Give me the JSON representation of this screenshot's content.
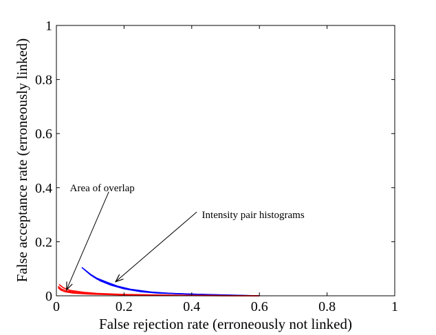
{
  "chart_data": {
    "type": "line",
    "title": "",
    "xlabel": "False rejection rate (erroneously not linked)",
    "ylabel": "False acceptance rate (erroneously linked)",
    "xlim": [
      0,
      1
    ],
    "ylim": [
      0,
      1
    ],
    "xticks": [
      "0",
      "0.2",
      "0.4",
      "0.6",
      "0.8",
      "1"
    ],
    "yticks": [
      "0",
      "0.2",
      "0.4",
      "0.6",
      "0.8",
      "1"
    ],
    "grid": false,
    "legend": "none",
    "series": [
      {
        "color": "#0000ff",
        "points": [
          [
            0.075,
            0.105
          ],
          [
            0.09,
            0.09
          ],
          [
            0.11,
            0.07
          ],
          [
            0.13,
            0.055
          ],
          [
            0.16,
            0.04
          ],
          [
            0.2,
            0.026
          ],
          [
            0.25,
            0.015
          ],
          [
            0.3,
            0.01
          ],
          [
            0.4,
            0.006
          ],
          [
            0.5,
            0.003
          ],
          [
            0.6,
            0.0
          ]
        ]
      },
      {
        "color": "#0000ff",
        "points": [
          [
            0.08,
            0.1
          ],
          [
            0.1,
            0.078
          ],
          [
            0.12,
            0.062
          ],
          [
            0.15,
            0.046
          ],
          [
            0.19,
            0.03
          ],
          [
            0.24,
            0.018
          ],
          [
            0.3,
            0.011
          ],
          [
            0.4,
            0.006
          ],
          [
            0.5,
            0.002
          ],
          [
            0.6,
            0.0
          ]
        ]
      },
      {
        "color": "#0000ff",
        "points": [
          [
            0.085,
            0.095
          ],
          [
            0.1,
            0.08
          ],
          [
            0.12,
            0.065
          ],
          [
            0.15,
            0.05
          ],
          [
            0.18,
            0.036
          ],
          [
            0.22,
            0.024
          ],
          [
            0.28,
            0.014
          ],
          [
            0.35,
            0.008
          ],
          [
            0.45,
            0.004
          ],
          [
            0.55,
            0.001
          ]
        ]
      },
      {
        "color": "#ff0000",
        "points": [
          [
            0.005,
            0.035
          ],
          [
            0.015,
            0.025
          ],
          [
            0.03,
            0.018
          ],
          [
            0.06,
            0.012
          ],
          [
            0.1,
            0.008
          ],
          [
            0.2,
            0.004
          ],
          [
            0.35,
            0.002
          ],
          [
            0.5,
            0.0005
          ],
          [
            0.6,
            0.0
          ]
        ]
      },
      {
        "color": "#ff0000",
        "points": [
          [
            0.005,
            0.03
          ],
          [
            0.012,
            0.022
          ],
          [
            0.025,
            0.015
          ],
          [
            0.05,
            0.01
          ],
          [
            0.1,
            0.006
          ],
          [
            0.2,
            0.003
          ],
          [
            0.35,
            0.001
          ],
          [
            0.5,
            0.0003
          ],
          [
            0.6,
            0.0
          ]
        ]
      },
      {
        "color": "#ff0000",
        "points": [
          [
            0.008,
            0.042
          ],
          [
            0.02,
            0.03
          ],
          [
            0.04,
            0.02
          ],
          [
            0.08,
            0.013
          ],
          [
            0.12,
            0.009
          ],
          [
            0.2,
            0.005
          ],
          [
            0.35,
            0.002
          ],
          [
            0.5,
            0.0008
          ],
          [
            0.6,
            0.0
          ]
        ]
      }
    ],
    "annotations": [
      {
        "text": "Area of overlap",
        "text_at": [
          0.04,
          0.4
        ],
        "arrow_from": [
          0.155,
          0.385
        ],
        "arrow_to": [
          0.03,
          0.022
        ]
      },
      {
        "text": "Intensity pair histograms",
        "text_at": [
          0.43,
          0.3
        ],
        "arrow_from": [
          0.415,
          0.31
        ],
        "arrow_to": [
          0.175,
          0.052
        ]
      }
    ]
  }
}
